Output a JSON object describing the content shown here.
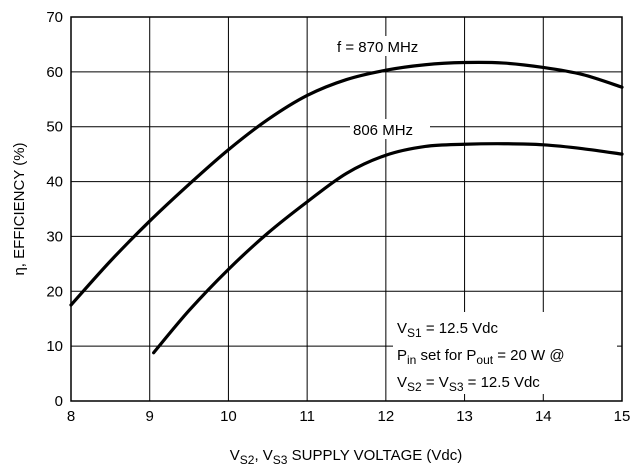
{
  "chart_data": {
    "type": "line",
    "xlabel": {
      "parts": [
        {
          "t": "V",
          "sub": false
        },
        {
          "t": "S2",
          "sub": true
        },
        {
          "t": ", V",
          "sub": false
        },
        {
          "t": "S3",
          "sub": true
        },
        {
          "t": " SUPPLY VOLTAGE (Vdc)",
          "sub": false
        }
      ]
    },
    "ylabel": "η, EFFICIENCY (%)",
    "xlim": [
      8,
      15
    ],
    "ylim": [
      0,
      70
    ],
    "xticks": [
      "8",
      "9",
      "10",
      "11",
      "12",
      "13",
      "14",
      "15"
    ],
    "yticks": [
      "0",
      "10",
      "20",
      "30",
      "40",
      "50",
      "60",
      "70"
    ],
    "grid": true,
    "series": [
      {
        "name": "f = 870 MHz",
        "x": [
          8.0,
          8.5,
          9.0,
          9.5,
          10.0,
          10.5,
          11.0,
          11.5,
          12.0,
          12.5,
          13.0,
          13.5,
          14.0,
          14.5,
          15.0
        ],
        "y": [
          17.5,
          25.5,
          32.8,
          39.5,
          45.8,
          51.3,
          55.7,
          58.6,
          60.3,
          61.3,
          61.7,
          61.6,
          60.8,
          59.5,
          57.2
        ]
      },
      {
        "name": "806 MHz",
        "x": [
          9.05,
          9.5,
          10.0,
          10.5,
          11.0,
          11.5,
          12.0,
          12.5,
          13.0,
          13.5,
          14.0,
          14.5,
          15.0
        ],
        "y": [
          8.8,
          16.5,
          24.0,
          30.6,
          36.3,
          41.5,
          44.8,
          46.4,
          46.8,
          46.9,
          46.7,
          46.0,
          45.0
        ]
      }
    ],
    "annotations": [
      {
        "id": "ann1",
        "parts": [
          {
            "t": "V",
            "sub": false
          },
          {
            "t": "S1",
            "sub": true
          },
          {
            "t": " = 12.5 Vdc",
            "sub": false
          }
        ]
      },
      {
        "id": "ann2",
        "parts": [
          {
            "t": "P",
            "sub": false
          },
          {
            "t": "in",
            "sub": true
          },
          {
            "t": " set for P",
            "sub": false
          },
          {
            "t": "out",
            "sub": true
          },
          {
            "t": " = 20 W @",
            "sub": false
          }
        ]
      },
      {
        "id": "ann3",
        "parts": [
          {
            "t": "V",
            "sub": false
          },
          {
            "t": "S2",
            "sub": true
          },
          {
            "t": " = V",
            "sub": false
          },
          {
            "t": "S3",
            "sub": true
          },
          {
            "t": " = 12.5 Vdc",
            "sub": false
          }
        ]
      }
    ],
    "colors": {
      "line": "#000000",
      "grid": "#000000",
      "background": "#ffffff"
    }
  }
}
